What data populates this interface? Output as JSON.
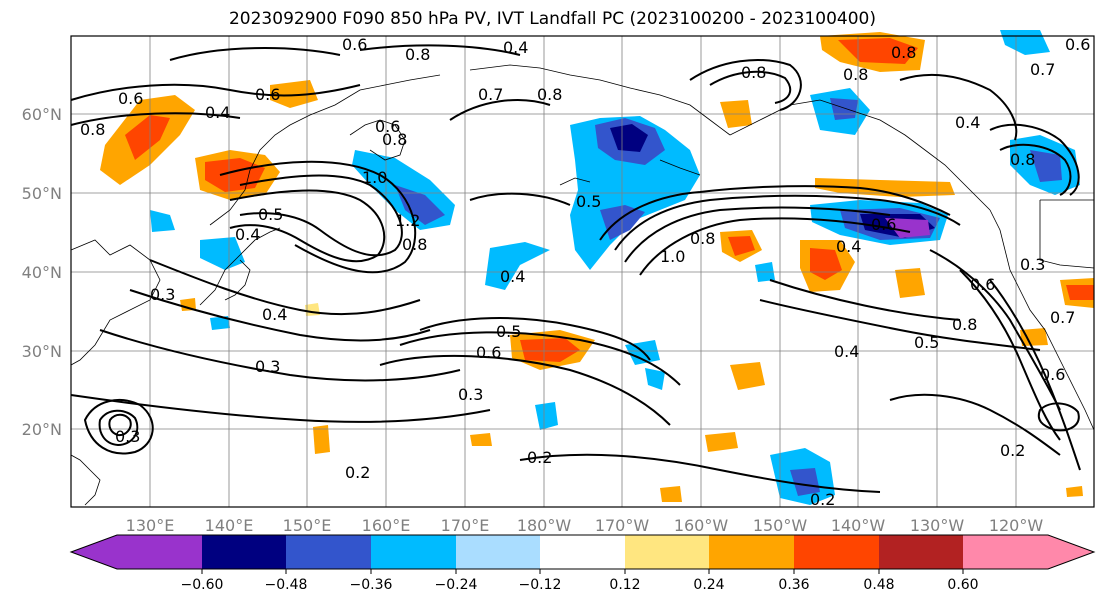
{
  "title": "2023092900 F090 850 hPa PV, IVT Landfall PC (2023100200 - 2023100400)",
  "lat_labels": [
    "60°N",
    "50°N",
    "40°N",
    "30°N",
    "20°N"
  ],
  "lon_labels": [
    "130°E",
    "140°E",
    "150°E",
    "160°E",
    "170°E",
    "180°W",
    "170°W",
    "160°W",
    "150°W",
    "140°W",
    "130°W",
    "120°W"
  ],
  "contour_labels": [
    "0.6",
    "0.4",
    "0.7",
    "0.8",
    "0.8",
    "0.8",
    "0.6",
    "0.8",
    "0.7",
    "0.6",
    "0.8",
    "0.6",
    "0.4",
    "0.6",
    "0.8",
    "0.4",
    "0.6",
    "0.4",
    "0.5",
    "1.0",
    "1.2",
    "0.8",
    "0.5",
    "1.0",
    "0.8",
    "0.6",
    "0.4",
    "0.3",
    "0.4",
    "0.3",
    "0.5",
    "0.6",
    "0.3",
    "0.8",
    "0.4",
    "0.5",
    "0.2",
    "0.2",
    "0.2",
    "0.2",
    "0.3",
    "0.8",
    "0.4",
    "0.6",
    "0.3",
    "0.7",
    "0.8"
  ],
  "colorbar": {
    "ticks": [
      "−0.60",
      "−0.48",
      "−0.36",
      "−0.24",
      "−0.12",
      "0.12",
      "0.24",
      "0.36",
      "0.48",
      "0.60"
    ],
    "colors": [
      "#9933cc",
      "#000080",
      "#3355cc",
      "#00bbff",
      "#aaddff",
      "#ffffff",
      "#ffe680",
      "#ffa500",
      "#ff4500",
      "#b22222",
      "#ff88aa"
    ]
  }
}
